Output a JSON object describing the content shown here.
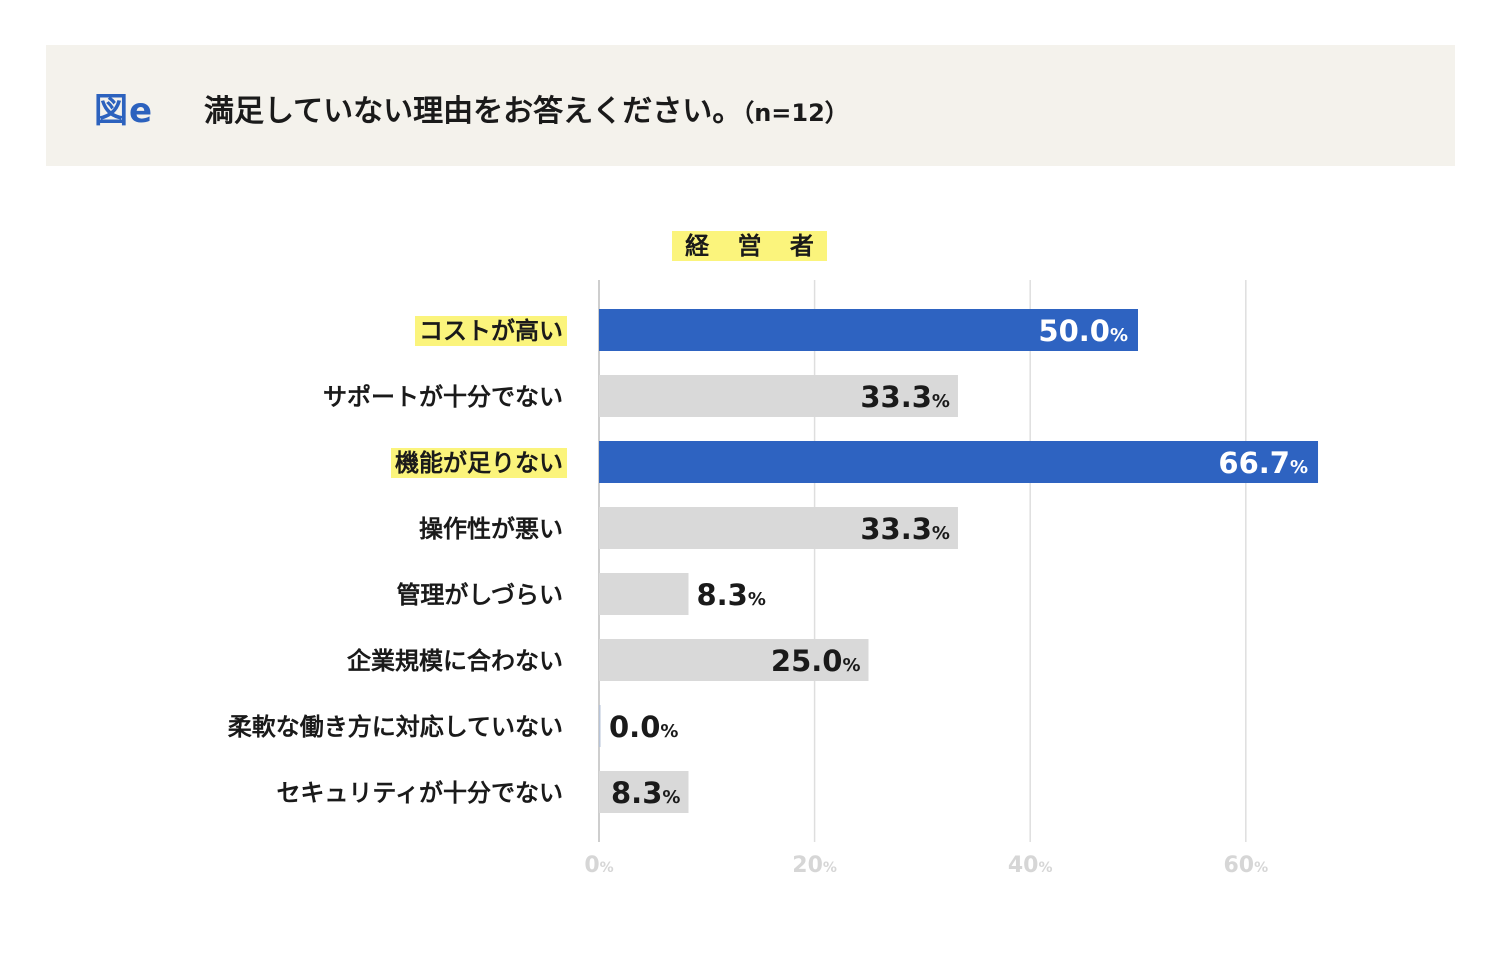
{
  "header": {
    "figure_label": "図e",
    "title": "満足していない理由をお答えください。",
    "sample": "（n=12）"
  },
  "chart_data": {
    "type": "bar",
    "orientation": "horizontal",
    "group_label": "経 営 者",
    "categories": [
      "コストが高い",
      "サポートが十分でない",
      "機能が足りない",
      "操作性が悪い",
      "管理がしづらい",
      "企業規模に合わない",
      "柔軟な働き方に対応していない",
      "セキュリティが十分でない"
    ],
    "values": [
      50.0,
      33.3,
      66.7,
      33.3,
      8.3,
      25.0,
      0.0,
      8.3
    ],
    "value_labels": [
      "50.0",
      "33.3",
      "66.7",
      "33.3",
      "8.3",
      "25.0",
      "0.0",
      "8.3"
    ],
    "unit": "%",
    "highlighted": [
      true,
      false,
      true,
      false,
      false,
      false,
      false,
      false
    ],
    "xlim": [
      0,
      60
    ],
    "xticks": [
      0,
      20,
      40,
      60
    ],
    "grid": true,
    "colors": {
      "highlight_bar": "#2e63c1",
      "normal_bar": "#d9d9d9",
      "highlight_label_bg": "#fbf47c",
      "grid": "#dedede",
      "tick_text": "#d6d6d6",
      "accent": "#2c62be",
      "header_bg": "#f4f2ec"
    }
  }
}
